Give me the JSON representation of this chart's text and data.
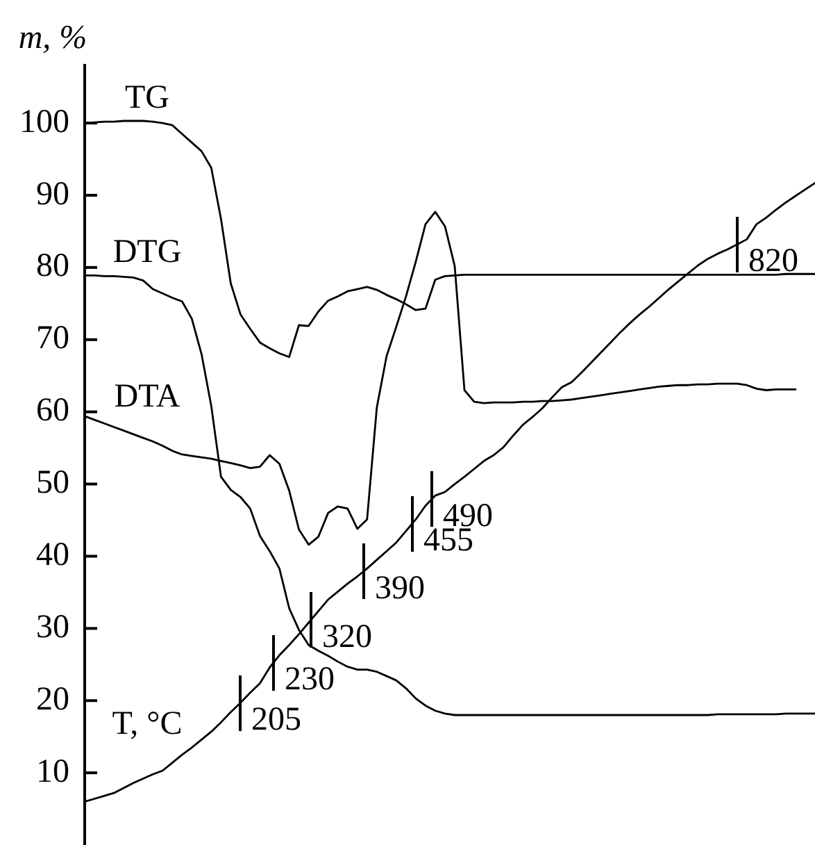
{
  "chart_data": {
    "type": "line",
    "ylabel": "m, %",
    "categories": [
      null,
      null,
      null,
      null,
      null,
      null,
      null,
      null,
      null,
      null,
      null,
      null,
      null,
      null,
      null,
      null,
      null,
      null,
      null,
      null,
      null,
      null,
      null,
      null,
      null,
      null,
      null,
      null,
      null,
      null,
      null,
      null,
      null,
      null,
      null,
      null,
      null,
      null,
      null,
      null,
      null,
      null,
      null,
      null,
      null,
      null,
      null,
      null,
      null,
      null,
      null,
      null,
      null,
      null,
      null,
      null,
      null,
      null,
      null,
      null,
      null,
      null,
      null,
      null,
      null,
      null,
      null,
      null,
      null,
      null,
      null,
      null,
      null,
      null,
      null,
      null
    ],
    "series": [
      {
        "name": "TG",
        "color": "#000000",
        "values": [
          100.0,
          100.1,
          100.2,
          100.2,
          100.3,
          100.3,
          100.3,
          100.2,
          100.0,
          99.7,
          98.5,
          97.3,
          96.1,
          93.8,
          86.7,
          77.8,
          73.5,
          71.5,
          69.6,
          68.8,
          68.1,
          67.6,
          72.0,
          71.9,
          73.9,
          75.4,
          76.0,
          76.7,
          77.0,
          77.3,
          76.9,
          76.2,
          75.6,
          74.9,
          74.1,
          74.3,
          78.3,
          78.8,
          78.9,
          79.0,
          79.0,
          79.0,
          79.0,
          79.0,
          79.0,
          79.0,
          79.0,
          79.0,
          79.0,
          79.0,
          79.0,
          79.0,
          79.0,
          79.0,
          79.0,
          79.0,
          79.0,
          79.0,
          79.0,
          79.0,
          79.0,
          79.0,
          79.0,
          79.0,
          79.0,
          79.0,
          79.0,
          79.0,
          79.0,
          79.0,
          79.0,
          79.0,
          79.1,
          79.1,
          79.1,
          79.1
        ]
      },
      {
        "name": "DTG",
        "color": "#000000",
        "values": [
          78.9,
          78.9,
          78.8,
          78.8,
          78.7,
          78.6,
          78.2,
          77.0,
          76.4,
          75.8,
          75.3,
          72.9,
          68.0,
          60.8,
          51.0,
          49.2,
          48.2,
          46.6,
          42.8,
          40.7,
          38.3,
          32.8,
          29.8,
          27.7,
          26.9,
          26.2,
          25.4,
          24.7,
          24.3,
          24.3,
          24.0,
          23.4,
          22.8,
          21.7,
          20.3,
          19.3,
          18.6,
          18.2,
          18.0,
          18.0,
          18.0,
          18.0,
          18.0,
          18.0,
          18.0,
          18.0,
          18.0,
          18.0,
          18.0,
          18.0,
          18.0,
          18.0,
          18.0,
          18.0,
          18.0,
          18.0,
          18.0,
          18.0,
          18.0,
          18.0,
          18.0,
          18.0,
          18.0,
          18.0,
          18.0,
          18.1,
          18.1,
          18.1,
          18.1,
          18.1,
          18.1,
          18.1,
          18.2,
          18.2,
          18.2,
          18.2
        ]
      },
      {
        "name": "DTA",
        "color": "#000000",
        "values": [
          59.4,
          58.9,
          58.4,
          57.9,
          57.4,
          56.9,
          56.4,
          55.9,
          55.3,
          54.6,
          54.1,
          53.9,
          53.7,
          53.5,
          53.2,
          52.9,
          52.6,
          52.2,
          52.4,
          54.0,
          52.8,
          49.1,
          43.7,
          41.6,
          42.7,
          46.0,
          46.9,
          46.6,
          43.8,
          45.1,
          60.6,
          67.7,
          71.8,
          76.0,
          80.8,
          86.0,
          87.7,
          85.7,
          80.2,
          63.0,
          61.4,
          61.2,
          61.3,
          61.3,
          61.3,
          61.4,
          61.4,
          61.5,
          61.5,
          61.6,
          61.7,
          61.9,
          62.1,
          62.3,
          62.5,
          62.7,
          62.9,
          63.1,
          63.3,
          63.5,
          63.6,
          63.7,
          63.7,
          63.8,
          63.8,
          63.9,
          63.9,
          63.9,
          63.7,
          63.2,
          63.0,
          63.1,
          63.1,
          63.1,
          null,
          null
        ]
      },
      {
        "name": "T, °C",
        "color": "#000000",
        "values": [
          6.0,
          6.4,
          6.8,
          7.2,
          7.9,
          8.6,
          9.2,
          9.8,
          10.3,
          11.4,
          12.5,
          13.5,
          14.6,
          15.7,
          17.0,
          18.4,
          19.7,
          21.1,
          22.4,
          24.6,
          26.3,
          27.7,
          29.2,
          30.8,
          32.4,
          34.0,
          35.1,
          36.2,
          37.2,
          38.3,
          39.5,
          40.7,
          41.9,
          43.5,
          45.1,
          47.0,
          48.4,
          48.9,
          50.0,
          51.0,
          52.1,
          53.2,
          54.0,
          55.1,
          56.7,
          58.2,
          59.3,
          60.5,
          62.0,
          63.4,
          64.1,
          65.4,
          66.8,
          68.2,
          69.6,
          71.0,
          72.3,
          73.5,
          74.6,
          75.8,
          77.0,
          78.1,
          79.2,
          80.3,
          81.2,
          81.9,
          82.5,
          83.2,
          83.9,
          86.0,
          86.9,
          88.0,
          89.0,
          89.9,
          90.8,
          91.7
        ]
      }
    ],
    "ylim": [
      0,
      108
    ],
    "yticks": [
      10,
      20,
      30,
      40,
      50,
      60,
      70,
      80,
      90,
      100
    ],
    "annotations": [
      "205",
      "230",
      "320",
      "390",
      "455",
      "490",
      "820"
    ]
  }
}
